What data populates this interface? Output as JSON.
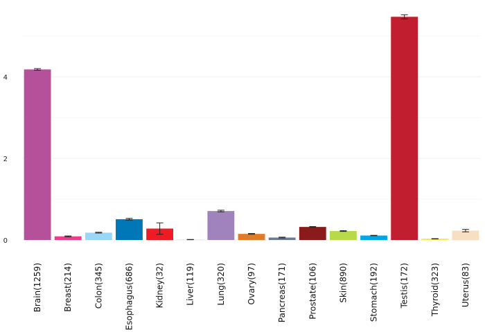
{
  "chart_data": {
    "type": "bar",
    "title": "",
    "xlabel": "",
    "ylabel": "",
    "ylim": [
      0,
      5.6
    ],
    "yticks": [
      0,
      2,
      4
    ],
    "grid": true,
    "categories": [
      "Brain(1259)",
      "Breast(214)",
      "Colon(345)",
      "Esophagus(686)",
      "Kidney(32)",
      "Liver(119)",
      "Lung(320)",
      "Ovary(97)",
      "Pancreas(171)",
      "Prostate(106)",
      "Skin(890)",
      "Stomach(192)",
      "Testis(172)",
      "Thyroid(323)",
      "Uterus(83)"
    ],
    "values": [
      4.18,
      0.09,
      0.18,
      0.51,
      0.28,
      0.01,
      0.71,
      0.15,
      0.06,
      0.32,
      0.22,
      0.11,
      5.47,
      0.03,
      0.23
    ],
    "errors": [
      0.02,
      0.01,
      0.01,
      0.02,
      0.14,
      0.003,
      0.02,
      0.01,
      0.01,
      0.01,
      0.01,
      0.005,
      0.05,
      0.004,
      0.03
    ],
    "colors": [
      "#b4519a",
      "#e83e8c",
      "#9ad6f5",
      "#0077b6",
      "#ed1c24",
      "#d9d9d9",
      "#a083bd",
      "#e07b2a",
      "#6b7a99",
      "#8b1a1a",
      "#b7d94a",
      "#00a8e8",
      "#c11f2f",
      "#f2e74b",
      "#f7dfc2"
    ]
  }
}
